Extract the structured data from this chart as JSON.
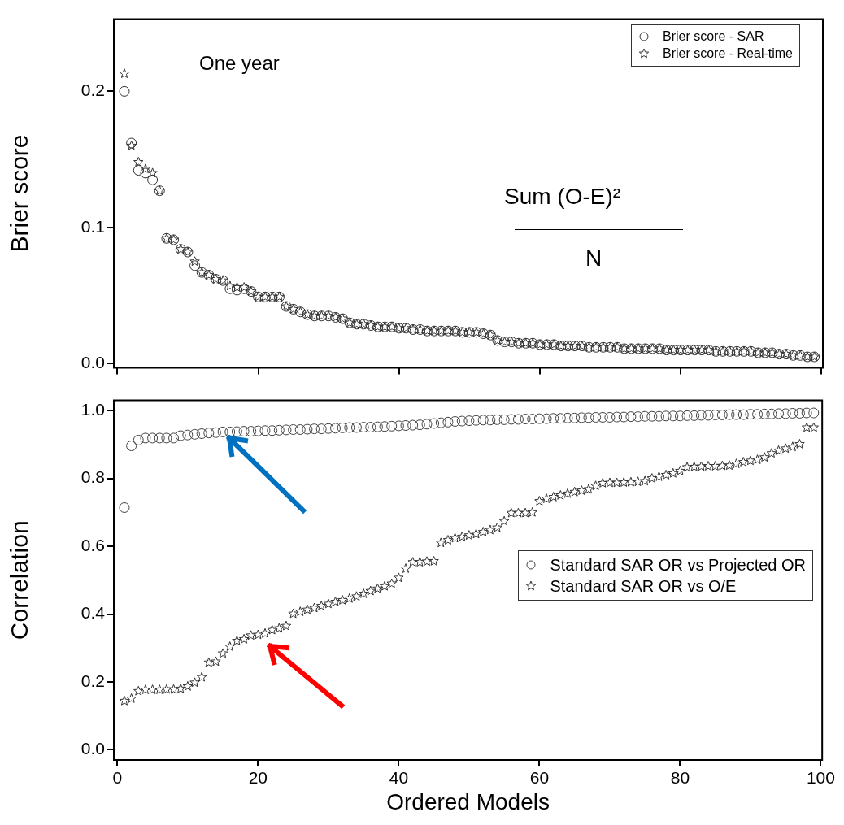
{
  "chart_data": [
    {
      "type": "scatter",
      "ylabel": "Brier score",
      "annotations": [
        "One year",
        "Sum (O-E)²",
        "N"
      ],
      "legend": "top right",
      "grid": false,
      "tick_labels": "y",
      "x": [
        1,
        2,
        3,
        4,
        5,
        6,
        7,
        8,
        9,
        10,
        11,
        12,
        13,
        14,
        15,
        16,
        17,
        18,
        19,
        20,
        21,
        22,
        23,
        24,
        25,
        26,
        27,
        28,
        29,
        30,
        31,
        32,
        33,
        34,
        35,
        36,
        37,
        38,
        39,
        40,
        41,
        42,
        43,
        44,
        45,
        46,
        47,
        48,
        49,
        50,
        51,
        52,
        53,
        54,
        55,
        56,
        57,
        58,
        59,
        60,
        61,
        62,
        63,
        64,
        65,
        66,
        67,
        68,
        69,
        70,
        71,
        72,
        73,
        74,
        75,
        76,
        77,
        78,
        79,
        80,
        81,
        82,
        83,
        84,
        85,
        86,
        87,
        88,
        89,
        90,
        91,
        92,
        93,
        94,
        95,
        96,
        97,
        98,
        99
      ],
      "xlim": [
        -0.5,
        100.2
      ],
      "xticks": [
        0,
        20,
        40,
        60,
        80,
        100
      ],
      "ylim": [
        -0.003,
        0.253
      ],
      "yticks": [
        {
          "value": 0,
          "label": "0.0"
        },
        {
          "value": 0.1,
          "label": "0.1"
        },
        {
          "value": 0.2,
          "label": "0.2"
        }
      ],
      "series": [
        {
          "name": "Brier score - SAR",
          "color": "#333333",
          "marker": "circle",
          "values": [
            0.2,
            0.162,
            0.142,
            0.14,
            0.135,
            0.127,
            0.092,
            0.091,
            0.084,
            0.082,
            0.072,
            0.067,
            0.065,
            0.062,
            0.061,
            0.055,
            0.054,
            0.055,
            0.053,
            0.049,
            0.049,
            0.049,
            0.049,
            0.042,
            0.04,
            0.038,
            0.036,
            0.035,
            0.035,
            0.035,
            0.034,
            0.033,
            0.03,
            0.029,
            0.029,
            0.028,
            0.027,
            0.027,
            0.027,
            0.026,
            0.026,
            0.025,
            0.025,
            0.024,
            0.024,
            0.024,
            0.024,
            0.024,
            0.023,
            0.023,
            0.023,
            0.022,
            0.021,
            0.017,
            0.016,
            0.016,
            0.015,
            0.015,
            0.015,
            0.014,
            0.014,
            0.014,
            0.013,
            0.013,
            0.013,
            0.013,
            0.012,
            0.012,
            0.012,
            0.012,
            0.012,
            0.011,
            0.011,
            0.011,
            0.011,
            0.011,
            0.011,
            0.01,
            0.01,
            0.01,
            0.01,
            0.01,
            0.01,
            0.01,
            0.009,
            0.009,
            0.009,
            0.009,
            0.009,
            0.009,
            0.008,
            0.008,
            0.008,
            0.007,
            0.007,
            0.006,
            0.006,
            0.005,
            0.005
          ]
        },
        {
          "name": "Brier score - Real-time",
          "color": "#333333",
          "marker": "star",
          "values": [
            0.213,
            0.16,
            0.148,
            0.143,
            0.14,
            0.127,
            0.092,
            0.091,
            0.084,
            0.082,
            0.075,
            0.067,
            0.065,
            0.062,
            0.061,
            0.057,
            0.056,
            0.056,
            0.053,
            0.049,
            0.049,
            0.049,
            0.049,
            0.042,
            0.04,
            0.038,
            0.036,
            0.035,
            0.035,
            0.035,
            0.034,
            0.033,
            0.03,
            0.029,
            0.029,
            0.028,
            0.027,
            0.027,
            0.027,
            0.026,
            0.026,
            0.025,
            0.025,
            0.024,
            0.024,
            0.024,
            0.024,
            0.024,
            0.023,
            0.023,
            0.023,
            0.022,
            0.021,
            0.017,
            0.016,
            0.016,
            0.015,
            0.015,
            0.015,
            0.014,
            0.014,
            0.014,
            0.013,
            0.013,
            0.013,
            0.013,
            0.012,
            0.012,
            0.012,
            0.012,
            0.012,
            0.011,
            0.011,
            0.011,
            0.011,
            0.011,
            0.011,
            0.01,
            0.01,
            0.01,
            0.01,
            0.01,
            0.01,
            0.01,
            0.009,
            0.009,
            0.009,
            0.009,
            0.009,
            0.009,
            0.008,
            0.008,
            0.008,
            0.007,
            0.007,
            0.006,
            0.006,
            0.005,
            0.005
          ]
        }
      ]
    },
    {
      "type": "scatter",
      "xlabel": "Ordered Models",
      "ylabel": "Correlation",
      "legend": "right",
      "grid": false,
      "x": [
        1,
        2,
        3,
        4,
        5,
        6,
        7,
        8,
        9,
        10,
        11,
        12,
        13,
        14,
        15,
        16,
        17,
        18,
        19,
        20,
        21,
        22,
        23,
        24,
        25,
        26,
        27,
        28,
        29,
        30,
        31,
        32,
        33,
        34,
        35,
        36,
        37,
        38,
        39,
        40,
        41,
        42,
        43,
        44,
        45,
        46,
        47,
        48,
        49,
        50,
        51,
        52,
        53,
        54,
        55,
        56,
        57,
        58,
        59,
        60,
        61,
        62,
        63,
        64,
        65,
        66,
        67,
        68,
        69,
        70,
        71,
        72,
        73,
        74,
        75,
        76,
        77,
        78,
        79,
        80,
        81,
        82,
        83,
        84,
        85,
        86,
        87,
        88,
        89,
        90,
        91,
        92,
        93,
        94,
        95,
        96,
        97,
        98,
        99
      ],
      "xlim": [
        -0.5,
        100.2
      ],
      "xticks": [
        0,
        20,
        40,
        60,
        80,
        100
      ],
      "ylim": [
        -0.03,
        1.03
      ],
      "yticks": [
        {
          "value": 0,
          "label": "0.0"
        },
        {
          "value": 0.2,
          "label": "0.2"
        },
        {
          "value": 0.4,
          "label": "0.4"
        },
        {
          "value": 0.6,
          "label": "0.6"
        },
        {
          "value": 0.8,
          "label": "0.8"
        },
        {
          "value": 1,
          "label": "1.0"
        }
      ],
      "series": [
        {
          "name": "Standard SAR OR vs Projected OR",
          "color": "#444444",
          "marker": "circle",
          "values": [
            0.714,
            0.896,
            0.913,
            0.919,
            0.919,
            0.919,
            0.919,
            0.919,
            0.926,
            0.928,
            0.93,
            0.932,
            0.934,
            0.935,
            0.937,
            0.937,
            0.938,
            0.939,
            0.939,
            0.94,
            0.941,
            0.941,
            0.942,
            0.943,
            0.944,
            0.944,
            0.945,
            0.946,
            0.946,
            0.947,
            0.948,
            0.949,
            0.95,
            0.95,
            0.951,
            0.951,
            0.952,
            0.953,
            0.954,
            0.955,
            0.956,
            0.957,
            0.958,
            0.96,
            0.962,
            0.964,
            0.966,
            0.968,
            0.969,
            0.97,
            0.971,
            0.972,
            0.972,
            0.973,
            0.973,
            0.974,
            0.974,
            0.975,
            0.975,
            0.976,
            0.976,
            0.977,
            0.977,
            0.978,
            0.978,
            0.979,
            0.979,
            0.98,
            0.98,
            0.98,
            0.981,
            0.981,
            0.982,
            0.982,
            0.983,
            0.983,
            0.983,
            0.984,
            0.984,
            0.984,
            0.985,
            0.985,
            0.986,
            0.986,
            0.987,
            0.987,
            0.988,
            0.988,
            0.988,
            0.989,
            0.989,
            0.99,
            0.99,
            0.991,
            0.991,
            0.992,
            0.992,
            0.993,
            0.993
          ]
        },
        {
          "name": "Standard SAR OR vs O/E",
          "color": "#333333",
          "marker": "star",
          "values": [
            0.144,
            0.151,
            0.173,
            0.177,
            0.177,
            0.177,
            0.178,
            0.178,
            0.18,
            0.187,
            0.198,
            0.214,
            0.257,
            0.26,
            0.284,
            0.304,
            0.321,
            0.326,
            0.337,
            0.339,
            0.343,
            0.353,
            0.358,
            0.365,
            0.401,
            0.407,
            0.413,
            0.418,
            0.424,
            0.43,
            0.436,
            0.441,
            0.446,
            0.452,
            0.46,
            0.468,
            0.475,
            0.482,
            0.49,
            0.507,
            0.534,
            0.553,
            0.553,
            0.555,
            0.556,
            0.61,
            0.618,
            0.624,
            0.628,
            0.632,
            0.636,
            0.642,
            0.648,
            0.655,
            0.674,
            0.698,
            0.698,
            0.698,
            0.7,
            0.733,
            0.74,
            0.745,
            0.75,
            0.755,
            0.76,
            0.764,
            0.768,
            0.778,
            0.786,
            0.787,
            0.787,
            0.788,
            0.789,
            0.79,
            0.792,
            0.8,
            0.805,
            0.81,
            0.815,
            0.822,
            0.833,
            0.834,
            0.835,
            0.836,
            0.836,
            0.837,
            0.838,
            0.843,
            0.848,
            0.852,
            0.855,
            0.862,
            0.874,
            0.882,
            0.888,
            0.893,
            0.901,
            0.95,
            0.95
          ]
        }
      ]
    }
  ]
}
